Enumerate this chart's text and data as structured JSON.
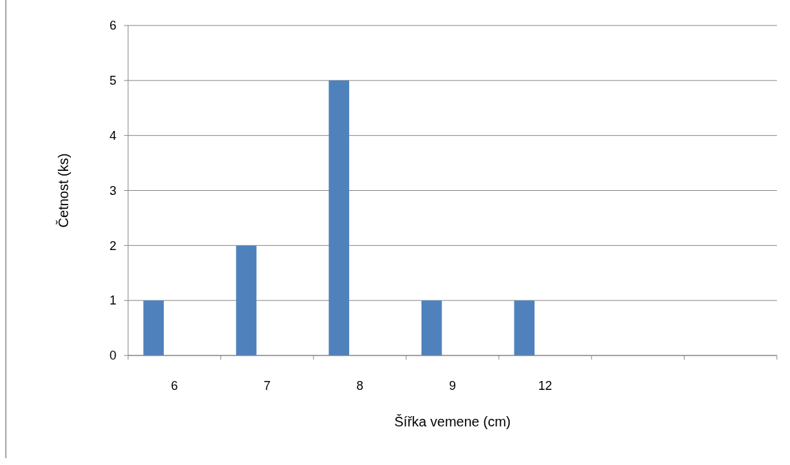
{
  "chart_data": {
    "type": "bar",
    "xlabel": "Šířka vemene (cm)",
    "ylabel": "Četnost (ks)",
    "categories": [
      "6",
      "7",
      "8",
      "9",
      "12",
      null,
      null
    ],
    "values": [
      1,
      2,
      5,
      1,
      1,
      null,
      null
    ],
    "color": "#4f81bd",
    "ylim": [
      0,
      6
    ],
    "yticks": [
      0,
      1,
      2,
      3,
      4,
      5,
      6
    ],
    "grid": "y"
  }
}
